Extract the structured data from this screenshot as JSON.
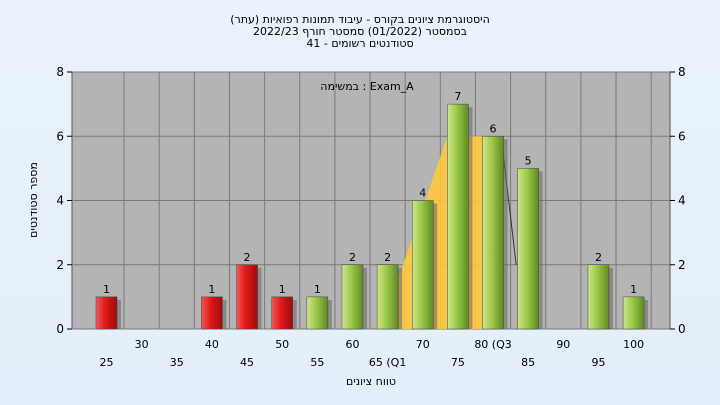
{
  "chart_data": {
    "type": "bar",
    "title_lines": [
      "היסטוגרמת ציונים בקורס - עיבוד תמונות רפואיות (עתר)",
      "בסמסטר  (01/2022)  סמסטר חורף 2022/23",
      "סטודנטים רשומים - 41"
    ],
    "annotation": "במשימה : Exam_A",
    "xlabel": "טווח ציונים",
    "ylabel": "מספר סטודנטים",
    "ylim": [
      0,
      8
    ],
    "y_ticks": [
      "0",
      "2",
      "4",
      "6",
      "8"
    ],
    "x_tick_labels": [
      "25",
      "30",
      "35",
      "40",
      "45",
      "50",
      "55",
      "60",
      "65 (Q1",
      "70",
      "75",
      "80 (Q3",
      "85",
      "90",
      "95",
      "100"
    ],
    "categories": [
      25,
      30,
      35,
      40,
      45,
      50,
      55,
      60,
      65,
      70,
      75,
      80,
      85,
      90,
      95,
      100
    ],
    "values": [
      1,
      0,
      0,
      1,
      2,
      1,
      1,
      2,
      2,
      4,
      7,
      6,
      5,
      0,
      2,
      1
    ],
    "data_labels": [
      "1",
      "",
      "",
      "1",
      "2",
      "1",
      "1",
      "2",
      "2",
      "4",
      "7",
      "6",
      "5",
      "",
      "2",
      "1"
    ],
    "bar_colors": [
      "red",
      "red",
      "red",
      "red",
      "red",
      "red",
      "green",
      "green",
      "green",
      "green",
      "green",
      "green",
      "green",
      "green",
      "green",
      "green"
    ],
    "quartiles": {
      "q1": 65,
      "median": 75,
      "q3": 80
    },
    "colors": {
      "plot_bg": "#b4b4b4",
      "red_bar": "#e02020",
      "green_bar": "#9cc84a",
      "box": "#ffc83c"
    },
    "grid": true
  }
}
